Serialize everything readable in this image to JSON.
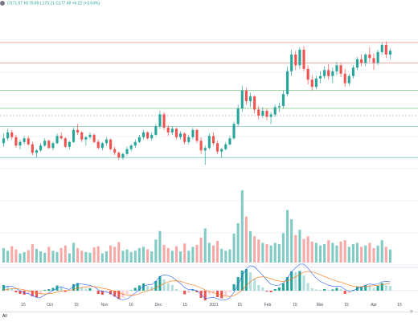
{
  "legend": {
    "ohlc_text": "O171.57 H179.89 L170.21 C177.49 +6.22 (+3.64%)",
    "color": "#26a69a"
  },
  "time_axis": {
    "labels": [
      "15",
      "Oct",
      "15",
      "Nov",
      "16",
      "Dec",
      "15",
      "2021",
      "15",
      "Feb",
      "15",
      "Mar",
      "15",
      "Apr",
      "15"
    ]
  },
  "controls": {
    "range_all": "All",
    "range_alt": "5",
    "scroll_icon": "chevrons-right-icon"
  },
  "colors": {
    "up": "#26a69a",
    "down": "#ef5350",
    "grid": "#f0f3fa",
    "hline_red": "#ef9a9a",
    "hline_green": "#81c784",
    "hline_teal": "#80cbc4",
    "macd_line": "#2962ff",
    "signal_line": "#ff6d00"
  },
  "chart_data": {
    "type": "candlestick",
    "price_candles": [
      [
        136,
        144,
        133,
        140
      ],
      [
        140,
        148,
        138,
        145
      ],
      [
        145,
        147,
        139,
        141
      ],
      [
        141,
        143,
        132,
        134
      ],
      [
        134,
        139,
        131,
        137
      ],
      [
        137,
        142,
        135,
        140
      ],
      [
        140,
        142,
        134,
        135
      ],
      [
        135,
        137,
        126,
        128
      ],
      [
        128,
        131,
        124,
        130
      ],
      [
        130,
        136,
        129,
        134
      ],
      [
        134,
        140,
        133,
        138
      ],
      [
        138,
        139,
        131,
        132
      ],
      [
        132,
        137,
        130,
        136
      ],
      [
        136,
        144,
        135,
        142
      ],
      [
        142,
        145,
        139,
        140
      ],
      [
        140,
        141,
        132,
        133
      ],
      [
        133,
        138,
        131,
        137
      ],
      [
        137,
        149,
        136,
        147
      ],
      [
        147,
        152,
        143,
        145
      ],
      [
        145,
        146,
        137,
        139
      ],
      [
        139,
        142,
        134,
        141
      ],
      [
        141,
        145,
        139,
        143
      ],
      [
        143,
        144,
        136,
        137
      ],
      [
        137,
        139,
        131,
        132
      ],
      [
        132,
        137,
        130,
        136
      ],
      [
        136,
        141,
        134,
        139
      ],
      [
        139,
        140,
        130,
        131
      ],
      [
        131,
        133,
        126,
        128
      ],
      [
        128,
        129,
        122,
        124
      ],
      [
        124,
        128,
        122,
        127
      ],
      [
        127,
        133,
        126,
        131
      ],
      [
        131,
        135,
        129,
        134
      ],
      [
        134,
        139,
        132,
        137
      ],
      [
        137,
        143,
        136,
        141
      ],
      [
        141,
        147,
        139,
        145
      ],
      [
        145,
        146,
        139,
        140
      ],
      [
        140,
        145,
        138,
        143
      ],
      [
        143,
        152,
        142,
        150
      ],
      [
        150,
        163,
        148,
        160
      ],
      [
        160,
        162,
        147,
        149
      ],
      [
        149,
        151,
        142,
        145
      ],
      [
        145,
        150,
        143,
        148
      ],
      [
        148,
        149,
        139,
        141
      ],
      [
        141,
        146,
        139,
        144
      ],
      [
        144,
        145,
        135,
        137
      ],
      [
        137,
        143,
        135,
        141
      ],
      [
        141,
        149,
        139,
        147
      ],
      [
        147,
        148,
        136,
        138
      ],
      [
        138,
        141,
        127,
        130
      ],
      [
        130,
        134,
        118,
        132
      ],
      [
        132,
        144,
        131,
        142
      ],
      [
        142,
        145,
        134,
        136
      ],
      [
        136,
        138,
        127,
        129
      ],
      [
        129,
        132,
        124,
        131
      ],
      [
        131,
        137,
        130,
        135
      ],
      [
        135,
        142,
        134,
        140
      ],
      [
        140,
        154,
        139,
        152
      ],
      [
        152,
        168,
        150,
        165
      ],
      [
        165,
        184,
        162,
        180
      ],
      [
        180,
        182,
        168,
        171
      ],
      [
        171,
        178,
        166,
        175
      ],
      [
        175,
        176,
        161,
        164
      ],
      [
        164,
        167,
        156,
        159
      ],
      [
        159,
        166,
        157,
        163
      ],
      [
        163,
        165,
        155,
        158
      ],
      [
        158,
        162,
        152,
        160
      ],
      [
        160,
        168,
        158,
        166
      ],
      [
        166,
        170,
        162,
        167
      ],
      [
        167,
        180,
        165,
        177
      ],
      [
        177,
        200,
        175,
        196
      ],
      [
        196,
        214,
        192,
        210
      ],
      [
        210,
        213,
        197,
        201
      ],
      [
        201,
        216,
        198,
        214
      ],
      [
        214,
        217,
        196,
        198
      ],
      [
        198,
        201,
        185,
        189
      ],
      [
        189,
        193,
        180,
        183
      ],
      [
        183,
        192,
        181,
        190
      ],
      [
        190,
        196,
        186,
        192
      ],
      [
        192,
        200,
        190,
        197
      ],
      [
        197,
        202,
        189,
        192
      ],
      [
        192,
        199,
        186,
        196
      ],
      [
        196,
        204,
        193,
        201
      ],
      [
        201,
        203,
        191,
        194
      ],
      [
        194,
        198,
        183,
        186
      ],
      [
        186,
        194,
        184,
        192
      ],
      [
        192,
        201,
        190,
        199
      ],
      [
        199,
        208,
        197,
        206
      ],
      [
        206,
        210,
        200,
        203
      ],
      [
        203,
        211,
        200,
        210
      ],
      [
        210,
        216,
        204,
        207
      ],
      [
        207,
        211,
        197,
        203
      ],
      [
        203,
        214,
        201,
        212
      ],
      [
        212,
        220,
        210,
        218
      ],
      [
        218,
        221,
        207,
        210
      ],
      [
        210,
        215,
        206,
        213
      ]
    ],
    "volume": [
      22,
      18,
      25,
      20,
      14,
      16,
      19,
      28,
      21,
      17,
      15,
      24,
      18,
      16,
      22,
      26,
      14,
      30,
      22,
      18,
      16,
      15,
      23,
      25,
      14,
      17,
      26,
      24,
      31,
      18,
      20,
      16,
      18,
      22,
      24,
      20,
      17,
      35,
      48,
      27,
      22,
      18,
      25,
      17,
      29,
      18,
      24,
      27,
      38,
      52,
      30,
      26,
      33,
      21,
      18,
      20,
      44,
      60,
      110,
      70,
      48,
      40,
      35,
      30,
      28,
      26,
      30,
      28,
      45,
      80,
      66,
      42,
      50,
      36,
      40,
      32,
      30,
      26,
      28,
      34,
      30,
      26,
      32,
      34,
      24,
      28,
      30,
      24,
      26,
      30,
      22,
      26,
      34,
      24,
      20
    ],
    "histogram": [
      1.4,
      1.2,
      0.6,
      -0.4,
      -0.8,
      -1.0,
      -0.7,
      -1.4,
      -1.6,
      -0.9,
      0.2,
      0.4,
      0.7,
      1.3,
      1.0,
      -0.3,
      -0.1,
      1.6,
      1.9,
      0.9,
      0.5,
      0.6,
      0.1,
      -0.8,
      -1.0,
      -0.2,
      -0.9,
      -1.5,
      -2.1,
      -1.7,
      -0.8,
      0.1,
      0.7,
      1.3,
      1.8,
      1.2,
      1.0,
      2.4,
      3.6,
      2.8,
      1.9,
      1.4,
      0.4,
      0.0,
      -0.9,
      -0.6,
      0.3,
      -0.4,
      -1.8,
      -2.4,
      -0.9,
      -0.7,
      -1.6,
      -1.9,
      -1.2,
      -0.3,
      1.6,
      3.4,
      5.0,
      5.4,
      4.6,
      3.0,
      1.4,
      0.8,
      -0.2,
      -0.4,
      0.4,
      0.8,
      1.8,
      3.4,
      4.8,
      4.6,
      4.9,
      3.8,
      1.9,
      0.6,
      0.3,
      0.2,
      0.4,
      0.2,
      0.3,
      0.7,
      0.4,
      -0.8,
      -0.6,
      0.2,
      1.0,
      1.0,
      1.4,
      1.3,
      0.7,
      1.2,
      1.9,
      1.4,
      1.2
    ],
    "hlines": [
      {
        "value": 220,
        "color": "#ef9a9a"
      },
      {
        "value": 203,
        "color": "#ef9a9a"
      },
      {
        "value": 180,
        "color": "#81c784"
      },
      {
        "value": 165,
        "color": "#81c784"
      },
      {
        "value": 159,
        "color": "#b0bec5"
      },
      {
        "value": 150,
        "color": "#80cbc4"
      },
      {
        "value": 124,
        "color": "#80cbc4"
      }
    ],
    "price_range": [
      100,
      226
    ],
    "legend_entries": [],
    "grid": true
  }
}
